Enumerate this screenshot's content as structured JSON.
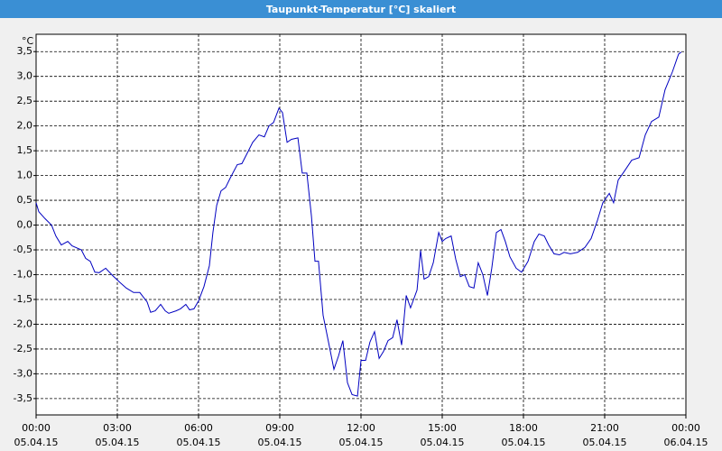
{
  "chart_data": {
    "type": "line",
    "title": "Taupunkt-Temperatur [°C] skaliert",
    "ylabel": "°C",
    "xlim": [
      0,
      24
    ],
    "ylim": [
      -3.83,
      3.85
    ],
    "grid": true,
    "xticks": [
      {
        "value": 0,
        "label": "00:00",
        "date": "05.04.15"
      },
      {
        "value": 3,
        "label": "03:00",
        "date": "05.04.15"
      },
      {
        "value": 6,
        "label": "06:00",
        "date": "05.04.15"
      },
      {
        "value": 9,
        "label": "09:00",
        "date": "05.04.15"
      },
      {
        "value": 12,
        "label": "12:00",
        "date": "05.04.15"
      },
      {
        "value": 15,
        "label": "15:00",
        "date": "05.04.15"
      },
      {
        "value": 18,
        "label": "18:00",
        "date": "05.04.15"
      },
      {
        "value": 21,
        "label": "21:00",
        "date": "05.04.15"
      },
      {
        "value": 24,
        "label": "00:00",
        "date": "06.04.15"
      }
    ],
    "yticks": [
      {
        "value": 3.5,
        "label": "3,5"
      },
      {
        "value": 3,
        "label": "3,0"
      },
      {
        "value": 2.5,
        "label": "2,5"
      },
      {
        "value": 2,
        "label": "2,0"
      },
      {
        "value": 1.5,
        "label": "1,5"
      },
      {
        "value": 1,
        "label": "1,0"
      },
      {
        "value": 0.5,
        "label": "0,5"
      },
      {
        "value": 0,
        "label": "0,0"
      },
      {
        "value": -0.5,
        "label": "-0,5"
      },
      {
        "value": -1,
        "label": "-1,0"
      },
      {
        "value": -1.5,
        "label": "-1,5"
      },
      {
        "value": -2,
        "label": "-2,0"
      },
      {
        "value": -2.5,
        "label": "-2,5"
      },
      {
        "value": -3,
        "label": "-3,0"
      },
      {
        "value": -3.5,
        "label": "-3,5"
      }
    ],
    "series": [
      {
        "name": "Taupunkt-Temperatur",
        "color": "#0000c0",
        "x": [
          0,
          0.1,
          0.33,
          0.57,
          0.73,
          0.93,
          1.17,
          1.33,
          1.67,
          1.83,
          2,
          2.17,
          2.33,
          2.57,
          2.83,
          3.1,
          3.33,
          3.6,
          3.83,
          4.1,
          4.23,
          4.4,
          4.6,
          4.77,
          4.9,
          5.17,
          5.33,
          5.53,
          5.67,
          5.83,
          6,
          6.2,
          6.4,
          6.53,
          6.67,
          6.83,
          7,
          7.17,
          7.43,
          7.6,
          7.77,
          8,
          8.23,
          8.43,
          8.6,
          8.77,
          8.97,
          9.1,
          9.27,
          9.43,
          9.67,
          9.83,
          10,
          10.17,
          10.3,
          10.43,
          10.6,
          10.8,
          11,
          11.17,
          11.33,
          11.5,
          11.67,
          11.87,
          12,
          12.17,
          12.33,
          12.5,
          12.67,
          12.83,
          13,
          13.17,
          13.33,
          13.5,
          13.67,
          13.83,
          14.07,
          14.2,
          14.33,
          14.5,
          14.67,
          14.87,
          15,
          15.13,
          15.33,
          15.5,
          15.67,
          15.83,
          16,
          16.17,
          16.33,
          16.5,
          16.67,
          16.83,
          17,
          17.17,
          17.33,
          17.5,
          17.73,
          17.93,
          18.17,
          18.4,
          18.57,
          18.77,
          18.93,
          19.13,
          19.33,
          19.5,
          19.73,
          20,
          20.27,
          20.5,
          20.73,
          20.93,
          21.17,
          21.33,
          21.5,
          21.73,
          22,
          22.27,
          22.5,
          22.73,
          23,
          23.23,
          23.5,
          23.73,
          23.83
        ],
        "values": [
          0.45,
          0.27,
          0.13,
          0,
          -0.22,
          -0.4,
          -0.33,
          -0.42,
          -0.5,
          -0.67,
          -0.73,
          -0.95,
          -0.96,
          -0.87,
          -1.02,
          -1.16,
          -1.27,
          -1.36,
          -1.36,
          -1.55,
          -1.76,
          -1.73,
          -1.6,
          -1.73,
          -1.78,
          -1.73,
          -1.69,
          -1.6,
          -1.71,
          -1.69,
          -1.53,
          -1.24,
          -0.82,
          -0.15,
          0.4,
          0.69,
          0.76,
          0.95,
          1.22,
          1.24,
          1.42,
          1.67,
          1.82,
          1.78,
          2,
          2.07,
          2.36,
          2.27,
          1.67,
          1.73,
          1.76,
          1.05,
          1.05,
          0.18,
          -0.73,
          -0.73,
          -1.82,
          -2.36,
          -2.91,
          -2.64,
          -2.33,
          -3.18,
          -3.42,
          -3.45,
          -2.73,
          -2.73,
          -2.36,
          -2.15,
          -2.69,
          -2.55,
          -2.33,
          -2.27,
          -1.91,
          -2.42,
          -1.42,
          -1.67,
          -1.31,
          -0.51,
          -1.09,
          -1.04,
          -0.76,
          -0.15,
          -0.33,
          -0.27,
          -0.22,
          -0.69,
          -1.04,
          -1,
          -1.24,
          -1.27,
          -0.76,
          -1,
          -1.42,
          -0.87,
          -0.15,
          -0.09,
          -0.33,
          -0.64,
          -0.87,
          -0.95,
          -0.73,
          -0.33,
          -0.18,
          -0.22,
          -0.4,
          -0.58,
          -0.6,
          -0.55,
          -0.58,
          -0.55,
          -0.45,
          -0.27,
          0.09,
          0.45,
          0.64,
          0.45,
          0.91,
          1.09,
          1.31,
          1.36,
          1.82,
          2.09,
          2.18,
          2.73,
          3.09,
          3.45,
          3.49
        ]
      }
    ]
  }
}
